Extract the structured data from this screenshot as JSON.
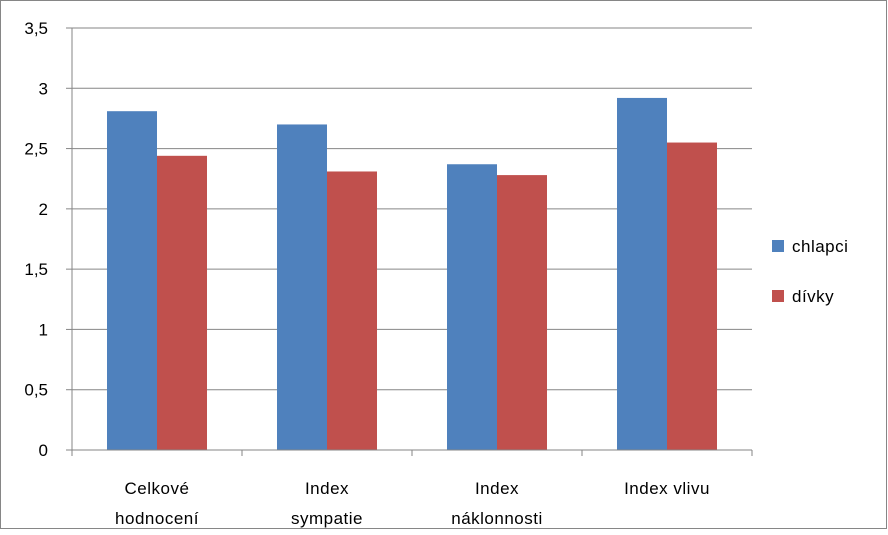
{
  "chart_data": {
    "type": "bar",
    "title": "",
    "xlabel": "",
    "ylabel": "",
    "categories": [
      [
        "Celkové",
        "hodnocení"
      ],
      [
        "Index",
        "sympatie"
      ],
      [
        "Index",
        "náklonnosti"
      ],
      [
        "Index vlivu"
      ]
    ],
    "series": [
      {
        "name": "chlapci",
        "color": "#4F81BD",
        "values": [
          2.81,
          2.7,
          2.37,
          2.92
        ]
      },
      {
        "name": "dívky",
        "color": "#C0504D",
        "values": [
          2.44,
          2.31,
          2.28,
          2.55
        ]
      }
    ],
    "ylim": [
      0,
      3.5
    ],
    "yticks": [
      "0",
      "0,5",
      "1",
      "1,5",
      "2",
      "2,5",
      "3",
      "3,5"
    ],
    "grid": true,
    "legend_position": "right"
  }
}
